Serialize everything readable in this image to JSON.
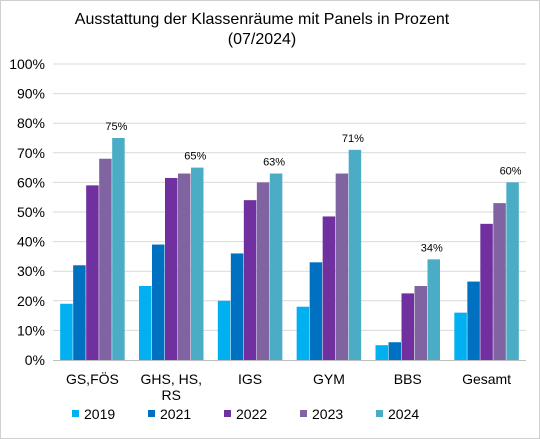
{
  "chart_data": {
    "type": "bar",
    "title": [
      "Ausstattung der Klassenräume mit Panels in Prozent",
      "(07/2024)"
    ],
    "categories": [
      [
        "GS,FÖS"
      ],
      [
        "GHS, HS,",
        "RS"
      ],
      [
        "IGS"
      ],
      [
        "GYM"
      ],
      [
        "BBS"
      ],
      [
        "Gesamt"
      ]
    ],
    "series": [
      {
        "name": "2019",
        "color": "#00b0f0",
        "values": [
          19,
          25,
          20,
          18,
          5,
          16
        ]
      },
      {
        "name": "2021",
        "color": "#0070c0",
        "values": [
          32,
          39,
          36,
          33,
          6,
          26.5
        ]
      },
      {
        "name": "2022",
        "color": "#7030a0",
        "values": [
          59,
          61.5,
          54,
          48.5,
          22.5,
          46
        ]
      },
      {
        "name": "2023",
        "color": "#8064a2",
        "values": [
          68,
          63,
          60,
          63,
          25,
          53
        ]
      },
      {
        "name": "2024",
        "color": "#4bacc6",
        "values": [
          75,
          65,
          63,
          71,
          34,
          60
        ]
      }
    ],
    "data_labels": {
      "series": "2024",
      "labels": [
        "75%",
        "65%",
        "63%",
        "71%",
        "34%",
        "60%"
      ]
    },
    "ylim": [
      0,
      100
    ],
    "yticks": [
      "0%",
      "10%",
      "20%",
      "30%",
      "40%",
      "50%",
      "60%",
      "70%",
      "80%",
      "90%",
      "100%"
    ],
    "grid": true,
    "legend_position": "bottom"
  }
}
